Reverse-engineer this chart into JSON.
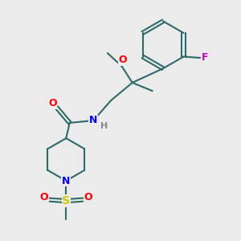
{
  "background_color": "#ebebeb",
  "bond_color": "#2d6b6b",
  "atom_colors": {
    "O": "#ff0000",
    "N": "#0000ff",
    "F": "#cc00cc",
    "S": "#cccc00",
    "H": "#888888",
    "C": "#2d6b6b"
  },
  "figsize": [
    3.0,
    3.0
  ],
  "dpi": 100
}
